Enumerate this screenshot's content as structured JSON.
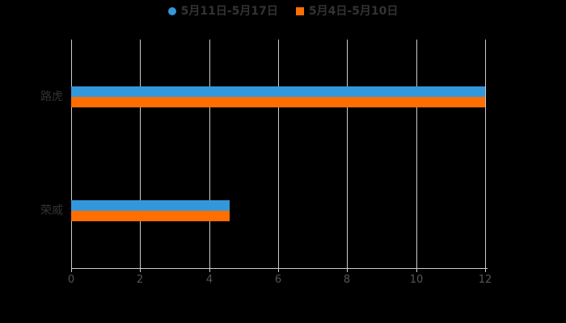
{
  "legend": {
    "items": [
      {
        "label": "5月11日-5月17日",
        "marker": "circle",
        "color": "#3398DB"
      },
      {
        "label": "5月4日-5月10日",
        "marker": "square",
        "color": "#FF6E00"
      }
    ]
  },
  "chart_data": {
    "type": "bar",
    "orientation": "horizontal",
    "title": "",
    "xlabel": "",
    "ylabel": "",
    "categories": [
      "路虎",
      "荣威"
    ],
    "series": [
      {
        "name": "5月11日-5月17日",
        "color": "#3398DB",
        "values": [
          12,
          4.6
        ]
      },
      {
        "name": "5月4日-5月10日",
        "color": "#FF6E00",
        "values": [
          12,
          4.6
        ]
      }
    ],
    "xlim": [
      0,
      12
    ],
    "xticks": [
      0,
      2,
      4,
      6,
      8,
      10,
      12
    ],
    "grid": true,
    "legend_position": "top",
    "background_color": "#000000",
    "grid_color": "#cccccc",
    "axis_color": "#cccccc",
    "tick_label_color": "#555555",
    "category_label_color": "#333333",
    "legend_text_color": "#333333"
  }
}
